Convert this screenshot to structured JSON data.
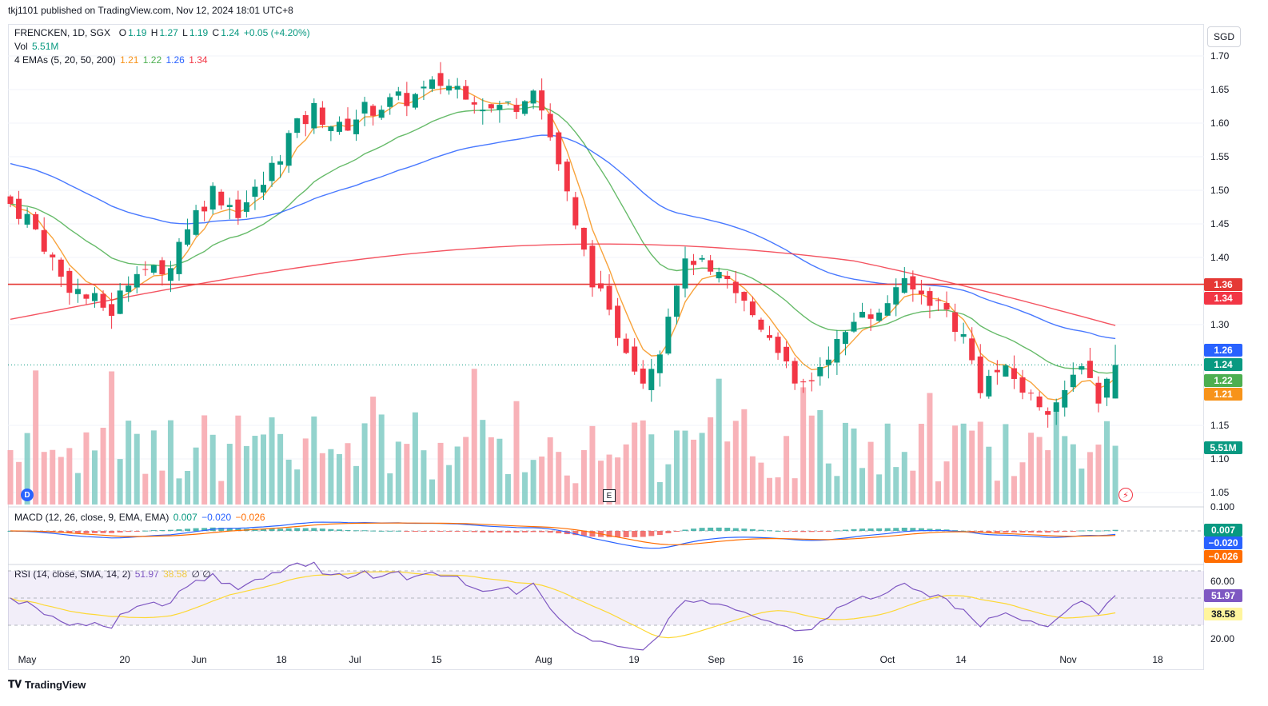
{
  "header": {
    "published_line": "tkj1101 published on TradingView.com, Nov 12, 2024 18:01 UTC+8",
    "currency": "SGD"
  },
  "legend": {
    "symbol": "FRENCKEN, 1D, SGX",
    "o_label": "O",
    "o": "1.19",
    "h_label": "H",
    "h": "1.27",
    "l_label": "L",
    "l": "1.19",
    "c_label": "C",
    "c": "1.24",
    "change": "+0.05 (+4.20%)",
    "vol_label": "Vol",
    "vol": "5.51M",
    "ema_label": "4 EMAs (5, 20, 50, 200)",
    "ema5": "1.21",
    "ema20": "1.22",
    "ema50": "1.26",
    "ema200": "1.34",
    "macd_label": "MACD (12, 26, close, 9, EMA, EMA)",
    "macd_hist": "0.007",
    "macd_line": "−0.020",
    "macd_signal": "−0.026",
    "rsi_label": "RSI (14, close, SMA, 14, 2)",
    "rsi": "51.97",
    "rsi_sma": "38.58",
    "rsi_extra": "∅ ∅"
  },
  "badges": {
    "hline": "1.36",
    "ema200": "1.34",
    "ema50": "1.26",
    "close": "1.24",
    "ema20": "1.22",
    "ema5": "1.21",
    "vol": "5.51M",
    "macd_hist": "0.007",
    "macd_line": "−0.020",
    "macd_signal": "−0.026",
    "rsi": "51.97",
    "rsi_sma": "38.58"
  },
  "markers": {
    "dividend": "D",
    "earnings": "E"
  },
  "footer": {
    "brand": "TradingView"
  },
  "colors": {
    "up": "#089981",
    "down": "#f23645",
    "ema5": "#f7931a",
    "ema20": "#4caf50",
    "ema50": "#2962ff",
    "ema200": "#f23645",
    "hline": "#e53935",
    "macd": "#2962ff",
    "signal": "#ff6d00",
    "rsi": "#7e57c2",
    "rsi_sma": "#fdd835"
  },
  "chart_data": {
    "type": "candlestick",
    "price_axis": {
      "min": 1.03,
      "max": 1.72,
      "ticks": [
        "1.70",
        "1.65",
        "1.60",
        "1.55",
        "1.50",
        "1.45",
        "1.40",
        "1.30",
        "1.15",
        "1.10",
        "1.05"
      ]
    },
    "time_axis": {
      "labels": [
        "May",
        "20",
        "Jun",
        "18",
        "Jul",
        "15",
        "Aug",
        "19",
        "Sep",
        "16",
        "Oct",
        "14",
        "Nov",
        "18"
      ]
    },
    "horizontal_line": 1.36,
    "close_anchors": [
      [
        0,
        1.48
      ],
      [
        2,
        1.46
      ],
      [
        4,
        1.42
      ],
      [
        6,
        1.37
      ],
      [
        9,
        1.34
      ],
      [
        12,
        1.32
      ],
      [
        15,
        1.39
      ],
      [
        18,
        1.37
      ],
      [
        21,
        1.45
      ],
      [
        24,
        1.5
      ],
      [
        27,
        1.47
      ],
      [
        30,
        1.51
      ],
      [
        33,
        1.58
      ],
      [
        36,
        1.62
      ],
      [
        39,
        1.59
      ],
      [
        42,
        1.62
      ],
      [
        45,
        1.63
      ],
      [
        48,
        1.64
      ],
      [
        51,
        1.66
      ],
      [
        54,
        1.65
      ],
      [
        57,
        1.62
      ],
      [
        60,
        1.63
      ],
      [
        62,
        1.66
      ],
      [
        65,
        1.54
      ],
      [
        67,
        1.44
      ],
      [
        69,
        1.37
      ],
      [
        71,
        1.31
      ],
      [
        73,
        1.27
      ],
      [
        75,
        1.22
      ],
      [
        77,
        1.27
      ],
      [
        79,
        1.37
      ],
      [
        81,
        1.4
      ],
      [
        83,
        1.37
      ],
      [
        85,
        1.36
      ],
      [
        87,
        1.33
      ],
      [
        89,
        1.3
      ],
      [
        91,
        1.27
      ],
      [
        93,
        1.2
      ],
      [
        95,
        1.22
      ],
      [
        97,
        1.26
      ],
      [
        99,
        1.28
      ],
      [
        101,
        1.33
      ],
      [
        103,
        1.31
      ],
      [
        105,
        1.36
      ],
      [
        107,
        1.35
      ],
      [
        109,
        1.34
      ],
      [
        111,
        1.32
      ],
      [
        113,
        1.28
      ],
      [
        115,
        1.21
      ],
      [
        117,
        1.23
      ],
      [
        119,
        1.22
      ],
      [
        121,
        1.19
      ],
      [
        123,
        1.18
      ],
      [
        125,
        1.19
      ],
      [
        127,
        1.25
      ],
      [
        129,
        1.19
      ],
      [
        131,
        1.24
      ]
    ],
    "volume_axis_max_m": 12
  }
}
